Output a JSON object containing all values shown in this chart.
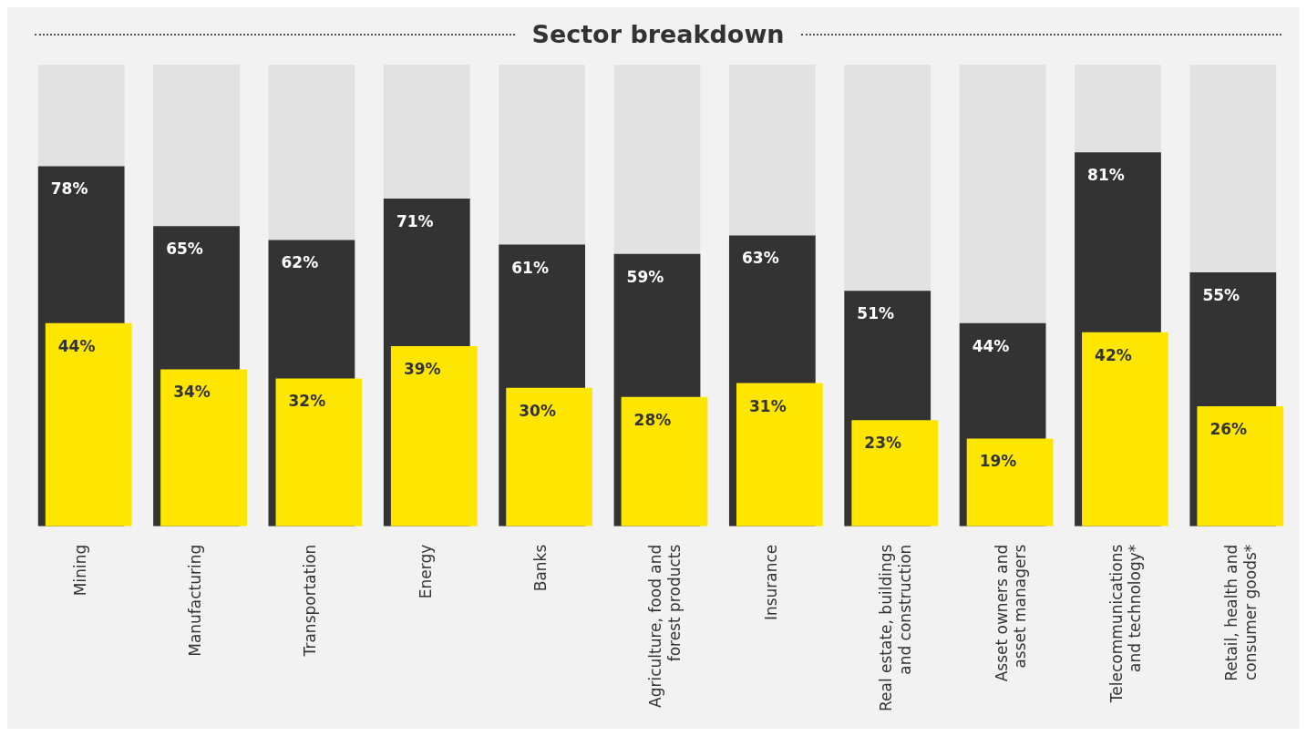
{
  "chart_data": {
    "type": "bar",
    "title": "Sector breakdown",
    "categories": [
      "Mining",
      "Manufacturing",
      "Transportation",
      "Energy",
      "Banks",
      "Agriculture, food and\nforest products",
      "Insurance",
      "Real estate, buildings\nand construction",
      "Asset owners and\nasset managers",
      "Telecommunications\nand technology*",
      "Retail, health and\nconsumer goods*"
    ],
    "series": [
      {
        "color": "#333333",
        "values": [
          78,
          65,
          62,
          71,
          61,
          59,
          63,
          51,
          44,
          81,
          55
        ],
        "value_labels": [
          "78%",
          "65%",
          "62%",
          "71%",
          "61%",
          "59%",
          "63%",
          "51%",
          "44%",
          "81%",
          "55%"
        ]
      },
      {
        "color": "#ffe600",
        "values": [
          44,
          34,
          32,
          39,
          30,
          28,
          31,
          23,
          19,
          42,
          26
        ],
        "value_labels": [
          "44%",
          "34%",
          "32%",
          "39%",
          "30%",
          "28%",
          "31%",
          "23%",
          "19%",
          "42%",
          "26%"
        ]
      }
    ],
    "ylim": [
      0,
      100
    ],
    "tick_labels": "x",
    "grid": false,
    "legend": false
  }
}
